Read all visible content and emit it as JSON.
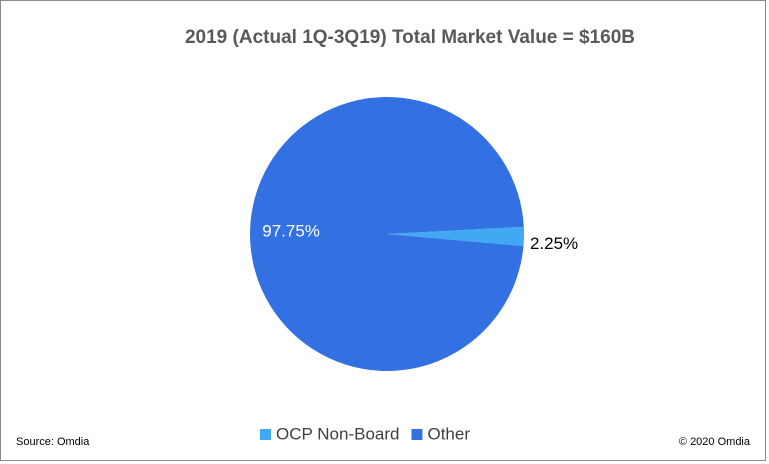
{
  "chart_data": {
    "type": "pie",
    "title": "2019 (Actual  1Q-3Q19) Total Market Value =  $160B",
    "categories": [
      "OCP Non-Board",
      "Other"
    ],
    "values": [
      2.25,
      97.75
    ],
    "value_labels": [
      "2.25%",
      "97.75%"
    ],
    "colors": [
      "#41a8f3",
      "#3370e2"
    ],
    "legend": "bottom",
    "source": "Source:  Omdia",
    "copyright": "© 2020  Omdia"
  }
}
